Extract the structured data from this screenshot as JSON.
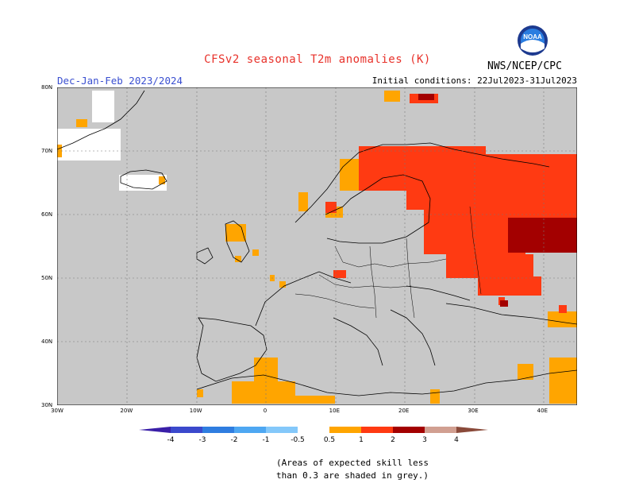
{
  "header": {
    "title": "CFSv2 seasonal T2m anomalies (K)",
    "period": "Dec-Jan-Feb 2023/2024",
    "initial_conditions": "Initial conditions: 22Jul2023-31Jul2023",
    "agency": "NWS/NCEP/CPC",
    "logo_text": "NOAA"
  },
  "map": {
    "lat_labels": [
      "80N",
      "70N",
      "60N",
      "50N",
      "40N",
      "30N"
    ],
    "lon_labels": [
      "30W",
      "20W",
      "10W",
      "0",
      "10E",
      "20E",
      "30E",
      "40E"
    ],
    "background_color": "#c8c8c8",
    "gridline": "dotted"
  },
  "colorbar": {
    "tick_labels": [
      "-4",
      "-3",
      "-2",
      "-1",
      "-0.5",
      "0.5",
      "1",
      "2",
      "3",
      "4"
    ],
    "colors": [
      "#3a1fa8",
      "#3b49cc",
      "#2f7de0",
      "#4ea7f2",
      "#84c8fa",
      "#ffffff",
      "#ffa500",
      "#ff3a12",
      "#a30000",
      "#d19f91",
      "#8a4a3a"
    ]
  },
  "footnote": {
    "line1": "(Areas of expected skill less",
    "line2": "than 0.3 are shaded in grey.)"
  }
}
